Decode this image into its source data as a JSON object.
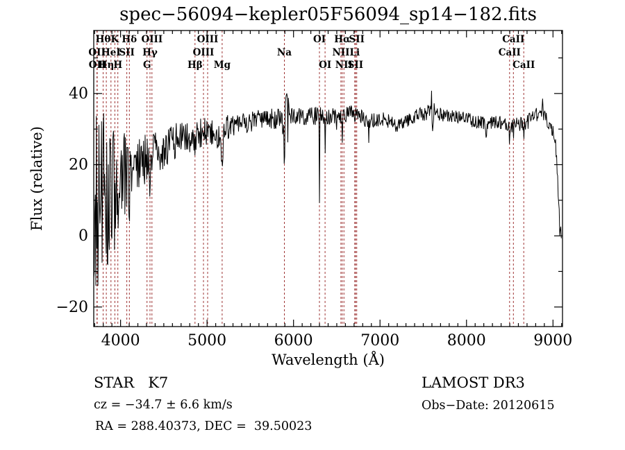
{
  "title": "spec−56094−kepler05F56094_sp14−182.fits",
  "annotations": {
    "classification": "STAR   K7",
    "survey": "LAMOST DR3",
    "cz": "cz = −34.7 ± 6.6 km/s",
    "obs_date": "Obs−Date: 20120615",
    "ra_dec": "RA = 288.40373, DEC =  39.50023"
  },
  "chart_data": {
    "type": "line",
    "title": "spec−56094−kepler05F56094_sp14−182.fits",
    "xlabel": "Wavelength (Å)",
    "ylabel": "Flux (relative)",
    "xlim": [
      3690,
      9110
    ],
    "ylim": [
      -25.5,
      57.7
    ],
    "xticks": [
      4000,
      5000,
      6000,
      7000,
      8000,
      9000
    ],
    "xtick_labels": [
      "4000",
      "5000",
      "6000",
      "7000",
      "8000",
      "9000"
    ],
    "x_minor_step": 100,
    "yticks": [
      -20,
      0,
      20,
      40
    ],
    "ytick_labels": [
      "−20",
      "0",
      "20",
      "40"
    ],
    "y_minor_ticks": [
      -10,
      10,
      30,
      50
    ],
    "grid": false,
    "line_color": "#000000",
    "frame_color": "#000000",
    "ref_line_color": "#9e3434",
    "spectral_lines": [
      {
        "label": "OII",
        "wavelength": 3727,
        "row": 2
      },
      {
        "label": "OII",
        "wavelength": 3730,
        "row": 3
      },
      {
        "label": "Hθ",
        "wavelength": 3798,
        "row": 1
      },
      {
        "label": "Hη",
        "wavelength": 3835,
        "row": 3
      },
      {
        "label": "HeI",
        "wavelength": 3889,
        "row": 2
      },
      {
        "label": "K",
        "wavelength": 3934,
        "row": 1
      },
      {
        "label": "H",
        "wavelength": 3969,
        "row": 3
      },
      {
        "label": "SII",
        "wavelength": 4072,
        "row": 2
      },
      {
        "label": "Hδ",
        "wavelength": 4102,
        "row": 1
      },
      {
        "label": "G",
        "wavelength": 4306,
        "row": 3
      },
      {
        "label": "Hγ",
        "wavelength": 4340,
        "row": 2
      },
      {
        "label": "OIII",
        "wavelength": 4363,
        "row": 1
      },
      {
        "label": "Hβ",
        "wavelength": 4861,
        "row": 3
      },
      {
        "label": "OIII",
        "wavelength": 4959,
        "row": 2
      },
      {
        "label": "OIII",
        "wavelength": 5007,
        "row": 1
      },
      {
        "label": "Mg",
        "wavelength": 5175,
        "row": 3
      },
      {
        "label": "Na",
        "wavelength": 5894,
        "row": 2
      },
      {
        "label": "OI",
        "wavelength": 6300,
        "row": 1
      },
      {
        "label": "OI",
        "wavelength": 6365,
        "row": 3
      },
      {
        "label": "NII",
        "wavelength": 6548,
        "row": 2
      },
      {
        "label": "Hα",
        "wavelength": 6563,
        "row": 1
      },
      {
        "label": "NII",
        "wavelength": 6583,
        "row": 3
      },
      {
        "label": "Li",
        "wavelength": 6708,
        "row": 2
      },
      {
        "label": "SII",
        "wavelength": 6716,
        "row": 3
      },
      {
        "label": "SII",
        "wavelength": 6731,
        "row": 1
      },
      {
        "label": "CaII",
        "wavelength": 8498,
        "row": 2
      },
      {
        "label": "CaII",
        "wavelength": 8542,
        "row": 1
      },
      {
        "label": "CaII",
        "wavelength": 8662,
        "row": 3
      }
    ],
    "continuum_anchors": [
      [
        3690,
        6
      ],
      [
        3720,
        8
      ],
      [
        3760,
        10
      ],
      [
        3800,
        12
      ],
      [
        3840,
        12
      ],
      [
        3880,
        13
      ],
      [
        3920,
        14
      ],
      [
        3960,
        15
      ],
      [
        4000,
        16
      ],
      [
        4060,
        17
      ],
      [
        4120,
        18.5
      ],
      [
        4200,
        20
      ],
      [
        4300,
        21.5
      ],
      [
        4400,
        23
      ],
      [
        4500,
        24.5
      ],
      [
        4600,
        26
      ],
      [
        4700,
        27.5
      ],
      [
        4800,
        28
      ],
      [
        4900,
        28.5
      ],
      [
        5000,
        29
      ],
      [
        5080,
        28.5
      ],
      [
        5170,
        27
      ],
      [
        5250,
        31
      ],
      [
        5350,
        31.5
      ],
      [
        5450,
        32
      ],
      [
        5550,
        32.5
      ],
      [
        5650,
        32.5
      ],
      [
        5750,
        33
      ],
      [
        5850,
        32.5
      ],
      [
        5950,
        33
      ],
      [
        6050,
        33.5
      ],
      [
        6150,
        34
      ],
      [
        6250,
        34
      ],
      [
        6350,
        33.5
      ],
      [
        6450,
        34
      ],
      [
        6550,
        33.5
      ],
      [
        6650,
        34.5
      ],
      [
        6750,
        34
      ],
      [
        6850,
        32.5
      ],
      [
        6950,
        32.5
      ],
      [
        7050,
        33
      ],
      [
        7150,
        32
      ],
      [
        7250,
        31.5
      ],
      [
        7350,
        33
      ],
      [
        7450,
        34
      ],
      [
        7550,
        34.5
      ],
      [
        7650,
        34.5
      ],
      [
        7750,
        34
      ],
      [
        7850,
        33.5
      ],
      [
        7950,
        33
      ],
      [
        8050,
        32.5
      ],
      [
        8150,
        32
      ],
      [
        8250,
        31.5
      ],
      [
        8350,
        32
      ],
      [
        8450,
        31.5
      ],
      [
        8550,
        31
      ],
      [
        8650,
        31.5
      ],
      [
        8750,
        32.5
      ],
      [
        8850,
        35
      ],
      [
        8900,
        34
      ],
      [
        8950,
        32
      ],
      [
        9000,
        30
      ],
      [
        9030,
        28
      ],
      [
        9060,
        12
      ],
      [
        9080,
        2
      ],
      [
        9100,
        1
      ]
    ],
    "noise_regions": [
      [
        3690,
        3770,
        27
      ],
      [
        3770,
        3860,
        23
      ],
      [
        3860,
        3960,
        18
      ],
      [
        3960,
        4060,
        13
      ],
      [
        4060,
        4150,
        9
      ],
      [
        4150,
        4300,
        7.5
      ],
      [
        4300,
        4500,
        6
      ],
      [
        4500,
        4750,
        5
      ],
      [
        4750,
        5000,
        4.5
      ],
      [
        5000,
        5300,
        4
      ],
      [
        5300,
        5700,
        3.2
      ],
      [
        5700,
        5870,
        3
      ],
      [
        5870,
        5950,
        8
      ],
      [
        5950,
        6280,
        2.8
      ],
      [
        6280,
        6500,
        2.5
      ],
      [
        6500,
        7100,
        2.2
      ],
      [
        7100,
        7550,
        2
      ],
      [
        7550,
        7640,
        3
      ],
      [
        7640,
        8480,
        2
      ],
      [
        8480,
        8700,
        2.3
      ],
      [
        8700,
        9000,
        2.3
      ],
      [
        9000,
        9100,
        3
      ]
    ],
    "features": [
      [
        3934,
        -12,
        6
      ],
      [
        3969,
        -12,
        6
      ],
      [
        4102,
        -9,
        5
      ],
      [
        4340,
        -8,
        5
      ],
      [
        4861,
        -6,
        5
      ],
      [
        5175,
        -5,
        13
      ],
      [
        5893,
        -14,
        5
      ],
      [
        5910,
        13,
        3
      ],
      [
        6300,
        -22,
        3
      ],
      [
        6365,
        -12,
        3
      ],
      [
        6495,
        -4,
        3
      ],
      [
        6563,
        -8,
        3
      ],
      [
        6870,
        -5,
        5
      ],
      [
        7190,
        -3,
        10
      ],
      [
        7594,
        12,
        3
      ],
      [
        7605,
        -4,
        6
      ],
      [
        8230,
        -3,
        8
      ],
      [
        8498,
        -5,
        3
      ],
      [
        8542,
        -6,
        3
      ],
      [
        8662,
        -7,
        3
      ],
      [
        8880,
        2,
        10
      ]
    ],
    "noise_seed": 20120615,
    "sample_step": 6
  }
}
